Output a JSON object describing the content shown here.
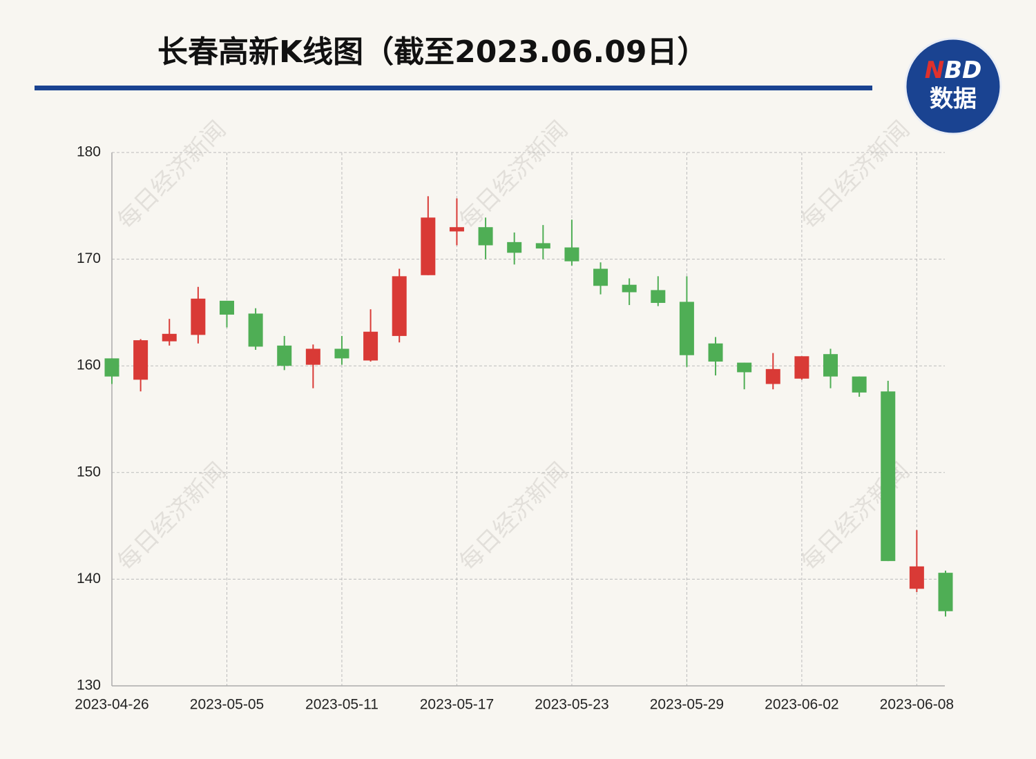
{
  "chart_data": {
    "type": "candlestick",
    "title": "长春高新K线图（截至2023.06.09日）",
    "categories": [
      "2023-04-26",
      null,
      null,
      null,
      "2023-05-05",
      null,
      null,
      null,
      "2023-05-11",
      null,
      null,
      null,
      "2023-05-17",
      null,
      null,
      null,
      "2023-05-23",
      null,
      null,
      null,
      "2023-05-29",
      null,
      null,
      null,
      "2023-06-02",
      null,
      null,
      null,
      "2023-06-08",
      null
    ],
    "open": [
      160.7,
      158.7,
      162.3,
      162.9,
      166.1,
      164.9,
      161.9,
      160.1,
      161.6,
      160.5,
      162.8,
      168.5,
      172.6,
      173.0,
      171.6,
      171.5,
      171.1,
      169.1,
      167.6,
      167.1,
      166.0,
      162.1,
      160.3,
      158.3,
      158.8,
      161.1,
      159.0,
      157.6,
      139.1,
      140.6
    ],
    "high": [
      160.7,
      162.5,
      164.4,
      167.4,
      166.1,
      165.4,
      162.8,
      162.0,
      162.8,
      165.3,
      169.1,
      175.9,
      175.7,
      173.9,
      172.5,
      173.2,
      173.7,
      169.7,
      168.2,
      168.4,
      168.4,
      162.7,
      160.3,
      161.2,
      160.9,
      161.6,
      159.0,
      158.6,
      144.6,
      140.8
    ],
    "low": [
      158.3,
      157.6,
      161.9,
      162.1,
      163.6,
      161.5,
      159.6,
      157.9,
      160.1,
      160.4,
      162.2,
      168.5,
      171.3,
      170.0,
      169.5,
      170.0,
      169.4,
      166.7,
      165.7,
      165.6,
      159.9,
      159.1,
      157.8,
      157.8,
      158.7,
      157.9,
      157.1,
      141.7,
      138.8,
      136.5
    ],
    "close": [
      159.0,
      162.4,
      163.0,
      166.3,
      164.8,
      161.8,
      160.0,
      161.6,
      160.7,
      163.2,
      168.4,
      173.9,
      173.0,
      171.3,
      170.6,
      171.0,
      169.8,
      167.5,
      166.9,
      165.9,
      161.0,
      160.4,
      159.4,
      159.7,
      160.9,
      159.0,
      157.5,
      141.7,
      141.2,
      137.0
    ],
    "up_color": "#d93a36",
    "down_color": "#4fae55",
    "ylim": [
      130,
      180
    ],
    "yticks": [
      130,
      140,
      150,
      160,
      170,
      180
    ],
    "grid": true
  },
  "logo": {
    "n": "N",
    "bd": "BD",
    "sub": "数据"
  },
  "watermark": "每日经济新闻"
}
